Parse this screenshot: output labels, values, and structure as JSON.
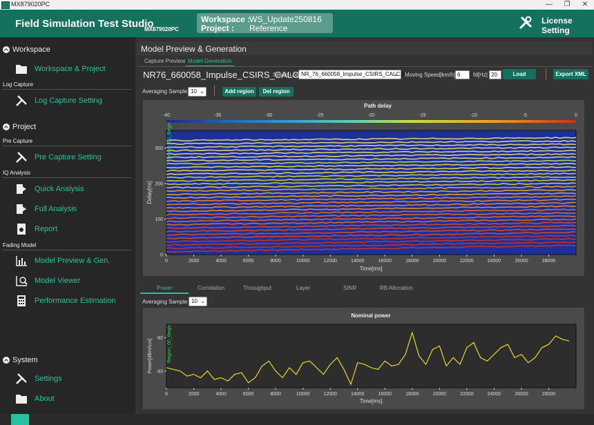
{
  "window": {
    "title": "MX879020PC",
    "minimize": "—",
    "maximize": "❐",
    "close": "✕"
  },
  "header": {
    "app_title": "Field Simulation Test Studio",
    "app_subtitle": "MX879020PC",
    "workspace_label": "Workspace :",
    "workspace_value": "WS_Update250816",
    "project_label": "Project :",
    "project_value": "Reference",
    "license_label": "License Setting"
  },
  "sidebar": {
    "workspace_section": "Workspace",
    "workspace_project": "Workspace & Project",
    "log_capture_sub": "Log Capture",
    "log_capture_setting": "Log Capture Setting",
    "project_section": "Project",
    "pre_capture_sub": "Pre Capture",
    "pre_capture_setting": "Pre Capture Setting",
    "iq_analysis_sub": "IQ Analysis",
    "quick_analysis": "Quick Analysis",
    "full_analysis": "Full Analysis",
    "report": "Report",
    "fading_model_sub": "Fading Model",
    "model_preview": "Model Preview & Gen.",
    "model_viewer": "Model Viewer",
    "performance_estimation": "Performance Estimation",
    "system_section": "System",
    "settings": "Settings",
    "about": "About"
  },
  "main": {
    "title": "Model Preview & Generation",
    "tab_capture_preview": "Capture Preview",
    "tab_model_generation": "Model Generation",
    "file_name": "NR76_660058_Impulse_CSIRS_CALC.bin",
    "select_log_label": "Select Log",
    "select_log_value": "NR_76_660058_Impulse_CSIRS_CALC.bin",
    "moving_speed_label": "Moving Speed[km/h]",
    "moving_speed_value": "6",
    "fd_label": "fd[Hz]",
    "fd_value": "20",
    "load_button": "Load",
    "export_button": "Export XML",
    "averaging_label": "Averaging Sample",
    "averaging_value": "10",
    "add_region": "Add region",
    "del_region": "Del region",
    "bottom_tabs": [
      "Power",
      "Correlation",
      "Throughput",
      "Layer",
      "SINR",
      "RB Allocation"
    ],
    "averaging2_label": "Averaging Sample",
    "averaging2_value": "10"
  },
  "chart_data": [
    {
      "type": "heatmap",
      "title": "Path delay",
      "xlabel": "Time[ms]",
      "ylabel": "Delay[ns]",
      "xlim": [
        0,
        30000
      ],
      "ylim": [
        0,
        350
      ],
      "xticks": [
        0,
        2000,
        4000,
        6000,
        8000,
        10000,
        12000,
        14000,
        16000,
        18000,
        20000,
        22000,
        24000,
        26000,
        28000
      ],
      "yticks": [
        0,
        100,
        200,
        300
      ],
      "colorbar_ticks": [
        -40,
        -35,
        -30,
        -25,
        -20,
        -15,
        -10,
        -5,
        0
      ],
      "annotation": "Region_00_Begin"
    },
    {
      "type": "line",
      "title": "Nominal power",
      "xlabel": "Time[ms]",
      "ylabel": "Power[dBm/scs]",
      "xlim": [
        0,
        30000
      ],
      "ylim": [
        -83.5,
        -81.6
      ],
      "xticks": [
        0,
        2000,
        4000,
        6000,
        8000,
        10000,
        12000,
        14000,
        16000,
        18000,
        20000,
        22000,
        24000,
        26000,
        28000
      ],
      "yticks": [
        -82,
        -83
      ],
      "annotation": "Region_00_Begin",
      "series": [
        {
          "color": "#e8d820",
          "x": [
            0,
            500,
            1000,
            1500,
            2000,
            2500,
            3000,
            3500,
            4000,
            4500,
            5000,
            5500,
            6000,
            6500,
            7000,
            7500,
            8000,
            8500,
            9000,
            9500,
            10000,
            10500,
            11000,
            11500,
            12000,
            12500,
            13000,
            13500,
            14000,
            14500,
            15000,
            15500,
            16000,
            16500,
            17000,
            17500,
            18000,
            18500,
            19000,
            19500,
            20000,
            20500,
            21000,
            21500,
            22000,
            22500,
            23000,
            23500,
            24000,
            24500,
            25000,
            25500,
            26000,
            26500,
            27000,
            27500,
            28000,
            28500,
            29000,
            29500
          ],
          "values": [
            -82.9,
            -82.95,
            -83.0,
            -83.15,
            -83.1,
            -83.2,
            -83.0,
            -83.25,
            -83.2,
            -83.3,
            -83.1,
            -83.05,
            -83.35,
            -83.2,
            -82.85,
            -82.7,
            -83.0,
            -83.2,
            -82.9,
            -83.1,
            -82.75,
            -82.7,
            -82.9,
            -83.1,
            -82.8,
            -82.6,
            -82.95,
            -83.4,
            -82.75,
            -82.8,
            -82.9,
            -82.95,
            -82.7,
            -82.85,
            -82.8,
            -82.5,
            -81.85,
            -82.55,
            -82.8,
            -82.35,
            -82.25,
            -82.85,
            -82.6,
            -82.8,
            -82.3,
            -82.15,
            -82.6,
            -82.7,
            -82.5,
            -82.3,
            -82.2,
            -82.6,
            -82.5,
            -82.75,
            -82.6,
            -82.3,
            -82.2,
            -81.95,
            -82.05,
            -82.1
          ]
        }
      ]
    }
  ]
}
